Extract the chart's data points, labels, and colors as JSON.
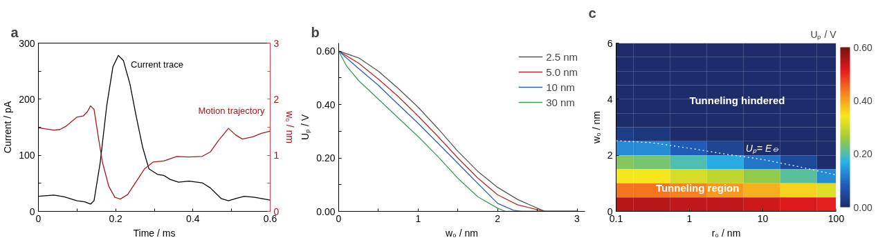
{
  "chart_data": [
    {
      "type": "line",
      "title": "a",
      "xlabel": "Time / ms",
      "ylabel": "Current / pA",
      "y2label": "w₀ / nm",
      "xlim": [
        0,
        0.6
      ],
      "xticks": [
        0,
        {
          "value": 0.1,
          "label": null
        },
        0.2,
        {
          "value": 0.3,
          "label": null
        },
        0.4,
        {
          "value": 0.5,
          "label": null
        },
        0.6
      ],
      "ylim": [
        0,
        300
      ],
      "yticks": [
        0,
        {
          "value": 50,
          "label": null
        },
        100,
        {
          "value": 150,
          "label": null
        },
        200,
        {
          "value": 250,
          "label": null
        },
        300
      ],
      "y2lim": [
        0,
        3
      ],
      "y2ticks": [
        0,
        {
          "value": 0.5,
          "label": null
        },
        1,
        {
          "value": 1.5,
          "label": null
        },
        2,
        {
          "value": 2.5,
          "label": null
        },
        3
      ],
      "grid": false,
      "legend": false,
      "series": [
        {
          "name": "Current trace",
          "color": "#000000",
          "x": [
            0,
            0.04,
            0.067,
            0.1,
            0.12,
            0.135,
            0.144,
            0.16,
            0.177,
            0.193,
            0.207,
            0.22,
            0.237,
            0.253,
            0.27,
            0.286,
            0.308,
            0.325,
            0.341,
            0.363,
            0.39,
            0.424,
            0.445,
            0.473,
            0.492,
            0.511,
            0.533,
            0.56,
            0.6
          ],
          "values": [
            27,
            29,
            26,
            19,
            17,
            13,
            19,
            87,
            189,
            258,
            278,
            269,
            227,
            170,
            114,
            76,
            66,
            64,
            57,
            52,
            54,
            51,
            42,
            23,
            19,
            23,
            27,
            25,
            20
          ]
        },
        {
          "name": "Motion trajectory",
          "color": "#a31a1f",
          "axis": "y2",
          "x": [
            0,
            0.04,
            0.056,
            0.072,
            0.1,
            0.116,
            0.127,
            0.135,
            0.144,
            0.155,
            0.166,
            0.182,
            0.198,
            0.212,
            0.231,
            0.253,
            0.275,
            0.297,
            0.325,
            0.358,
            0.39,
            0.424,
            0.445,
            0.467,
            0.492,
            0.511,
            0.528,
            0.555,
            0.577,
            0.6
          ],
          "values": [
            1.49,
            1.45,
            1.46,
            1.52,
            1.68,
            1.7,
            1.78,
            1.88,
            1.82,
            1.33,
            0.87,
            0.45,
            0.25,
            0.22,
            0.3,
            0.53,
            0.76,
            0.88,
            0.9,
            0.98,
            0.97,
            0.98,
            1.06,
            1.27,
            1.48,
            1.36,
            1.29,
            1.33,
            1.39,
            1.43
          ]
        }
      ]
    },
    {
      "type": "line",
      "title": "b",
      "xlabel": "w₀ / nm",
      "ylabel": "Uₚ / V",
      "xlim": [
        0,
        3.1
      ],
      "xticks": [
        0,
        {
          "value": 0.5,
          "label": null
        },
        1,
        {
          "value": 1.5,
          "label": null
        },
        2,
        {
          "value": 2.5,
          "label": null
        },
        3
      ],
      "ylim": [
        0,
        0.63
      ],
      "yticks": [
        {
          "value": 0,
          "label": "0.00"
        },
        {
          "value": 0.1,
          "label": null
        },
        {
          "value": 0.2,
          "label": "0.20"
        },
        {
          "value": 0.3,
          "label": null
        },
        {
          "value": 0.4,
          "label": "0.40"
        },
        {
          "value": 0.5,
          "label": null
        },
        {
          "value": 0.6,
          "label": "0.60"
        }
      ],
      "grid": false,
      "legend": "top right",
      "series": [
        {
          "name": "2.5 nm",
          "color": "#555555",
          "x": [
            0,
            0.25,
            0.5,
            0.75,
            1,
            1.25,
            1.5,
            1.75,
            2,
            2.25,
            2.5,
            2.6,
            3
          ],
          "values": [
            0.6,
            0.575,
            0.525,
            0.46,
            0.39,
            0.31,
            0.225,
            0.15,
            0.09,
            0.045,
            0.012,
            0,
            0
          ]
        },
        {
          "name": "5.0 nm",
          "color": "#b22a2a",
          "x": [
            0,
            0.25,
            0.5,
            0.75,
            1,
            1.25,
            1.5,
            1.75,
            2,
            2.25,
            2.5,
            2.6,
            3
          ],
          "values": [
            0.6,
            0.555,
            0.495,
            0.43,
            0.357,
            0.28,
            0.2,
            0.125,
            0.062,
            0.025,
            0.006,
            0,
            0
          ]
        },
        {
          "name": "10 nm",
          "color": "#2a5fb0",
          "x": [
            0,
            0.25,
            0.5,
            0.75,
            1,
            1.25,
            1.5,
            1.75,
            2,
            2.2,
            2.3,
            3
          ],
          "values": [
            0.6,
            0.535,
            0.472,
            0.4,
            0.33,
            0.255,
            0.18,
            0.105,
            0.03,
            0.004,
            0,
            0
          ]
        },
        {
          "name": "30 nm",
          "color": "#3a9a5a",
          "x": [
            0,
            0.1,
            0.25,
            0.5,
            0.75,
            1,
            1.25,
            1.5,
            1.75,
            2,
            2.1,
            3
          ],
          "values": [
            0.6,
            0.544,
            0.49,
            0.42,
            0.35,
            0.28,
            0.205,
            0.124,
            0.055,
            0.012,
            0,
            0
          ]
        }
      ]
    },
    {
      "type": "heatmap",
      "title": "c",
      "xlabel": "r₀ / nm",
      "ylabel": "w₀ / nm",
      "clabel": "Uₚ / V",
      "log": "x",
      "xlim": [
        0.1,
        100
      ],
      "xticks": [
        0.1,
        1,
        10,
        100
      ],
      "ylim": [
        0,
        6
      ],
      "yticks": [
        0,
        2,
        4,
        6
      ],
      "grid": false,
      "clim": [
        0,
        0.6
      ],
      "cticks": [
        {
          "value": 0,
          "label": "0.00"
        },
        {
          "value": 0.2,
          "label": "0.20"
        },
        {
          "value": 0.4,
          "label": "0.40"
        },
        {
          "value": 0.6,
          "label": "0.60"
        }
      ],
      "colors": [
        "#1d2c6b",
        "#1f5fbf",
        "#29b5e8",
        "#9ccc3c",
        "#f8e71c",
        "#f5841f",
        "#e31a1c",
        "#7a1010"
      ],
      "x": [
        0.1,
        0.3,
        1,
        3,
        10,
        30,
        100
      ],
      "y": [
        5.75,
        5.25,
        4.75,
        4.25,
        3.75,
        3.25,
        2.75,
        2.25,
        1.75,
        1.25,
        0.75,
        0.25
      ],
      "cells": [
        [
          0,
          0,
          0,
          0,
          0,
          0,
          0
        ],
        [
          0,
          0,
          0,
          0,
          0,
          0,
          0
        ],
        [
          0,
          0,
          0,
          0,
          0,
          0,
          0
        ],
        [
          0,
          0,
          0,
          0,
          0,
          0,
          0
        ],
        [
          0,
          0,
          0,
          0,
          0,
          0,
          0
        ],
        [
          0,
          0,
          0,
          0,
          0,
          0,
          0
        ],
        [
          0.03,
          0.02,
          0,
          0,
          0,
          0,
          0
        ],
        [
          0.13,
          0.13,
          0.08,
          0.04,
          0,
          0,
          0
        ],
        [
          0.24,
          0.23,
          0.2,
          0.16,
          0.11,
          0.05,
          0
        ],
        [
          0.34,
          0.34,
          0.31,
          0.29,
          0.25,
          0.21,
          0.13
        ],
        [
          0.44,
          0.44,
          0.43,
          0.41,
          0.39,
          0.36,
          0.32
        ],
        [
          0.55,
          0.55,
          0.54,
          0.54,
          0.53,
          0.52,
          0.51
        ]
      ],
      "series": [
        {
          "type": "line",
          "color": "#ffffff",
          "line_style": "dotted",
          "x": [
            0.1,
            0.3,
            1,
            3,
            10,
            30,
            100
          ],
          "values": [
            2.52,
            2.45,
            2.25,
            2.05,
            1.85,
            1.6,
            1.3
          ]
        }
      ],
      "annotations": [
        "Tunneling hindered",
        "Tunneling region",
        {
          "text": "Uₚ= E⦵",
          "x": 10,
          "y": 1.85
        }
      ]
    }
  ]
}
